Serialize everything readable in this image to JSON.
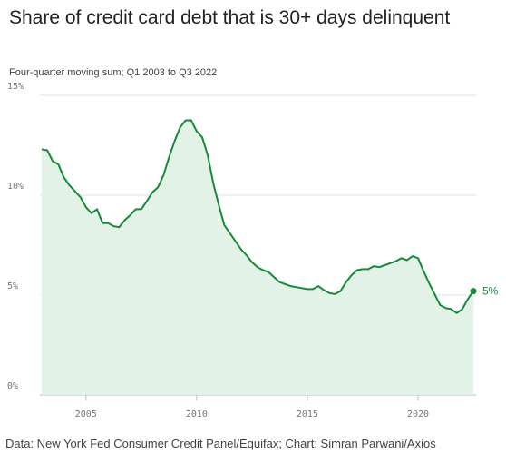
{
  "chart_data": {
    "type": "line",
    "title": "Share of credit card debt that is 30+ days delinquent",
    "subtitle": "Four-quarter moving sum; Q1 2003 to Q3 2022",
    "source": "Data: New York Fed Consumer Credit Panel/Equifax; Chart: Simran Parwani/Axios",
    "x": [
      2003,
      2003.25,
      2003.5,
      2003.75,
      2004,
      2004.25,
      2004.5,
      2004.75,
      2005,
      2005.25,
      2005.5,
      2005.75,
      2006,
      2006.25,
      2006.5,
      2006.75,
      2007,
      2007.25,
      2007.5,
      2007.75,
      2008,
      2008.25,
      2008.5,
      2008.75,
      2009,
      2009.25,
      2009.5,
      2009.75,
      2010,
      2010.25,
      2010.5,
      2010.75,
      2011,
      2011.25,
      2011.5,
      2011.75,
      2012,
      2012.25,
      2012.5,
      2012.75,
      2013,
      2013.25,
      2013.5,
      2013.75,
      2014,
      2014.25,
      2014.5,
      2014.75,
      2015,
      2015.25,
      2015.5,
      2015.75,
      2016,
      2016.25,
      2016.5,
      2016.75,
      2017,
      2017.25,
      2017.5,
      2017.75,
      2018,
      2018.25,
      2018.5,
      2018.75,
      2019,
      2019.25,
      2019.5,
      2019.75,
      2020,
      2020.25,
      2020.5,
      2020.75,
      2021,
      2021.25,
      2021.5,
      2021.75,
      2022,
      2022.25,
      2022.5
    ],
    "values": [
      12.3,
      12.25,
      11.7,
      11.55,
      10.9,
      10.5,
      10.2,
      9.9,
      9.4,
      9.1,
      9.3,
      8.6,
      8.6,
      8.45,
      8.4,
      8.75,
      9.0,
      9.3,
      9.3,
      9.7,
      10.15,
      10.4,
      11.0,
      11.9,
      12.7,
      13.4,
      13.75,
      13.75,
      13.2,
      12.9,
      12.0,
      10.6,
      9.5,
      8.5,
      8.1,
      7.7,
      7.3,
      7.0,
      6.65,
      6.4,
      6.25,
      6.15,
      5.9,
      5.65,
      5.55,
      5.45,
      5.4,
      5.35,
      5.3,
      5.3,
      5.45,
      5.25,
      5.1,
      5.05,
      5.2,
      5.65,
      6.0,
      6.25,
      6.3,
      6.3,
      6.45,
      6.4,
      6.5,
      6.6,
      6.7,
      6.85,
      6.75,
      6.95,
      6.85,
      6.2,
      5.6,
      5.05,
      4.5,
      4.35,
      4.3,
      4.1,
      4.3,
      4.8,
      5.2
    ],
    "value_labels": [
      null,
      null,
      null,
      null,
      null,
      null,
      null,
      null,
      null,
      null,
      null,
      null,
      null,
      null,
      null,
      null,
      null,
      null,
      null,
      null,
      null,
      null,
      null,
      null,
      null,
      null,
      null,
      null,
      null,
      null,
      null,
      null,
      null,
      null,
      null,
      null,
      null,
      null,
      null,
      null,
      null,
      null,
      null,
      null,
      null,
      null,
      null,
      null,
      null,
      null,
      null,
      null,
      null,
      null,
      null,
      null,
      null,
      null,
      null,
      null,
      null,
      null,
      null,
      null,
      null,
      null,
      null,
      null,
      null,
      null,
      null,
      null,
      null,
      null,
      null,
      null,
      null,
      null,
      "5%"
    ],
    "color": "#178a3a",
    "fill_color": "#e3f2e6",
    "xlim": [
      2003,
      2022.5
    ],
    "xticks": [
      2005,
      2010,
      2015,
      2020
    ],
    "ylim": [
      0,
      15
    ],
    "yticks": [
      {
        "value": 0,
        "label": "0%"
      },
      {
        "value": 5,
        "label": "5%"
      },
      {
        "value": 10,
        "label": "10%"
      },
      {
        "value": 15,
        "label": "15%"
      }
    ],
    "grid": true
  }
}
